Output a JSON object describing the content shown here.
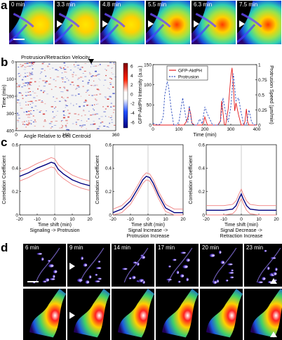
{
  "panel_a": {
    "letter": "a",
    "frames": [
      "0 min",
      "3.3 min",
      "4.8 min",
      "5.5 min",
      "6.3 min",
      "7.5 min"
    ]
  },
  "panel_b": {
    "letter": "b",
    "kymo_title": "Protrusion/Retraction Velocity",
    "kymo_ylabel": "Time (min)",
    "kymo_xlabel": "Angle Relative to Cell Centroid",
    "kymo_xticks": [
      "0",
      "180",
      "360"
    ],
    "kymo_yticks": [
      "0",
      "100",
      "200",
      "300",
      "400"
    ],
    "colorbar_ticks": [
      "6",
      "4",
      "2",
      "0",
      "-2",
      "-4",
      "-6"
    ]
  },
  "panel_c": {
    "letter": "c"
  },
  "panel_d": {
    "letter": "d",
    "frames": [
      "6 min",
      "9 min",
      "14 min",
      "17 min",
      "20 min",
      "23 min"
    ]
  },
  "chart_data": [
    {
      "type": "line",
      "id": "b-trace",
      "xlabel": "Time (min)",
      "ylabel": "GFP-AktPH Intensity (a.u.)",
      "y2label": "Protrusion Speed (µm/min)",
      "xlim": [
        0,
        400
      ],
      "ylim": [
        0,
        150
      ],
      "y2lim": [
        0,
        1
      ],
      "xticks": [
        0,
        100,
        200,
        300,
        400
      ],
      "yticks": [
        0,
        50,
        100,
        150
      ],
      "y2ticks": [
        0,
        0.25,
        0.5,
        0.75,
        1
      ],
      "legend_position": "top-left",
      "series": [
        {
          "name": "GFP-AktPH",
          "color": "#e41a1c",
          "axis": "left",
          "x": [
            0,
            20,
            40,
            55,
            60,
            65,
            70,
            80,
            100,
            120,
            130,
            135,
            140,
            145,
            150,
            160,
            175,
            185,
            190,
            195,
            200,
            210,
            230,
            250,
            260,
            265,
            270,
            275,
            280,
            290,
            300,
            305,
            310,
            315,
            320,
            330,
            340,
            350,
            355,
            360,
            365,
            370,
            380,
            400
          ],
          "y": [
            0,
            0,
            0,
            0,
            0,
            0,
            0,
            0,
            0,
            0,
            10,
            20,
            42,
            30,
            5,
            0,
            0,
            0,
            0,
            5,
            20,
            0,
            0,
            0,
            10,
            60,
            30,
            2,
            0,
            40,
            120,
            142,
            95,
            35,
            55,
            25,
            0,
            0,
            10,
            40,
            8,
            0,
            0,
            0
          ]
        },
        {
          "name": "Protrusion",
          "color": "#2f4fbf",
          "axis": "right",
          "x": [
            0,
            20,
            30,
            40,
            45,
            55,
            60,
            70,
            80,
            90,
            100,
            115,
            120,
            130,
            135,
            140,
            150,
            160,
            170,
            180,
            190,
            200,
            210,
            230,
            240,
            250,
            260,
            270,
            280,
            290,
            300,
            310,
            320,
            330,
            340,
            350,
            360,
            370,
            380,
            390,
            400
          ],
          "y": [
            0.03,
            0,
            0.02,
            0.15,
            0.48,
            0.72,
            0.65,
            0.28,
            0,
            0,
            0.05,
            0.45,
            0.3,
            0.05,
            0.05,
            0.32,
            0.02,
            0,
            0,
            0.1,
            0.02,
            0.3,
            0.18,
            0,
            0,
            0,
            0.05,
            0.45,
            0.2,
            0.05,
            0.3,
            0.85,
            0.4,
            0.45,
            0.2,
            0,
            0,
            0.25,
            0.05,
            0,
            0.02
          ]
        }
      ]
    },
    {
      "type": "line",
      "id": "c1",
      "xlabel": "Time shift (min)",
      "sublabel": "Signaling -> Protrusion",
      "ylabel": "Correlation Coefficient",
      "xlim": [
        -20,
        20
      ],
      "ylim": [
        0,
        0.6
      ],
      "xticks": [
        -20,
        -10,
        0,
        10,
        20
      ],
      "yticks": [
        0,
        0.2,
        0.4,
        0.6
      ],
      "series": [
        {
          "name": "mean",
          "color": "#00007f",
          "x": [
            -20,
            -15,
            -10,
            -5,
            -2,
            0,
            2,
            5,
            10,
            15,
            20
          ],
          "y": [
            0.33,
            0.36,
            0.4,
            0.43,
            0.45,
            0.44,
            0.39,
            0.35,
            0.3,
            0.27,
            0.25
          ]
        },
        {
          "name": "upper",
          "color": "#f08080",
          "x": [
            -20,
            -15,
            -10,
            -5,
            -2,
            0,
            2,
            5,
            10,
            15,
            20
          ],
          "y": [
            0.37,
            0.4,
            0.44,
            0.47,
            0.49,
            0.48,
            0.43,
            0.39,
            0.34,
            0.31,
            0.29
          ]
        },
        {
          "name": "lower",
          "color": "#f08080",
          "x": [
            -20,
            -15,
            -10,
            -5,
            -2,
            0,
            2,
            5,
            10,
            15,
            20
          ],
          "y": [
            0.29,
            0.32,
            0.36,
            0.39,
            0.41,
            0.4,
            0.35,
            0.31,
            0.26,
            0.23,
            0.21
          ]
        }
      ]
    },
    {
      "type": "line",
      "id": "c2",
      "xlabel": "Time shift (min)",
      "sublabel": "Signal Increase -> Protrusion Increase",
      "ylabel": "Correlation Coefficient",
      "xlim": [
        -20,
        20
      ],
      "ylim": [
        0,
        0.6
      ],
      "xticks": [
        -20,
        -10,
        0,
        10,
        20
      ],
      "yticks": [
        0,
        0.2,
        0.4,
        0.6
      ],
      "series": [
        {
          "name": "mean",
          "color": "#00007f",
          "x": [
            -20,
            -15,
            -10,
            -6,
            -3,
            -1,
            1,
            3,
            6,
            10,
            15,
            20
          ],
          "y": [
            0.02,
            0.05,
            0.12,
            0.22,
            0.3,
            0.33,
            0.32,
            0.27,
            0.17,
            0.06,
            0.02,
            0.02
          ]
        },
        {
          "name": "upper",
          "color": "#f08080",
          "x": [
            -20,
            -15,
            -10,
            -6,
            -3,
            -1,
            1,
            3,
            6,
            10,
            15,
            20
          ],
          "y": [
            0.05,
            0.08,
            0.15,
            0.25,
            0.33,
            0.36,
            0.35,
            0.3,
            0.2,
            0.09,
            0.05,
            0.05
          ]
        },
        {
          "name": "lower",
          "color": "#f08080",
          "x": [
            -20,
            -15,
            -10,
            -6,
            -3,
            -1,
            1,
            3,
            6,
            10,
            15,
            20
          ],
          "y": [
            -0.01,
            0.02,
            0.09,
            0.19,
            0.27,
            0.3,
            0.29,
            0.24,
            0.14,
            0.03,
            -0.01,
            -0.01
          ]
        }
      ]
    },
    {
      "type": "line",
      "id": "c3",
      "xlabel": "Time shift (min)",
      "sublabel": "Signal Decrease -> Retraction Increase",
      "ylabel": "Correlation Coefficient",
      "xlim": [
        -20,
        20
      ],
      "ylim": [
        0,
        0.6
      ],
      "xticks": [
        -20,
        -10,
        0,
        10,
        20
      ],
      "yticks": [
        0,
        0.2,
        0.4,
        0.6
      ],
      "series": [
        {
          "name": "mean",
          "color": "#00007f",
          "x": [
            -20,
            -10,
            -5,
            -3,
            -1,
            0,
            1,
            3,
            5,
            10,
            20
          ],
          "y": [
            0.04,
            0.04,
            0.05,
            0.08,
            0.15,
            0.18,
            0.14,
            0.08,
            0.05,
            0.04,
            0.04
          ]
        },
        {
          "name": "upper",
          "color": "#f08080",
          "x": [
            -20,
            -10,
            -5,
            -3,
            -1,
            0,
            1,
            3,
            5,
            10,
            20
          ],
          "y": [
            0.08,
            0.08,
            0.09,
            0.12,
            0.19,
            0.22,
            0.18,
            0.12,
            0.09,
            0.08,
            0.08
          ]
        },
        {
          "name": "lower",
          "color": "#f08080",
          "x": [
            -20,
            -10,
            -5,
            -3,
            -1,
            0,
            1,
            3,
            5,
            10,
            20
          ],
          "y": [
            0.0,
            0.0,
            0.01,
            0.04,
            0.11,
            0.14,
            0.1,
            0.04,
            0.01,
            0.0,
            0.0
          ]
        }
      ]
    }
  ]
}
